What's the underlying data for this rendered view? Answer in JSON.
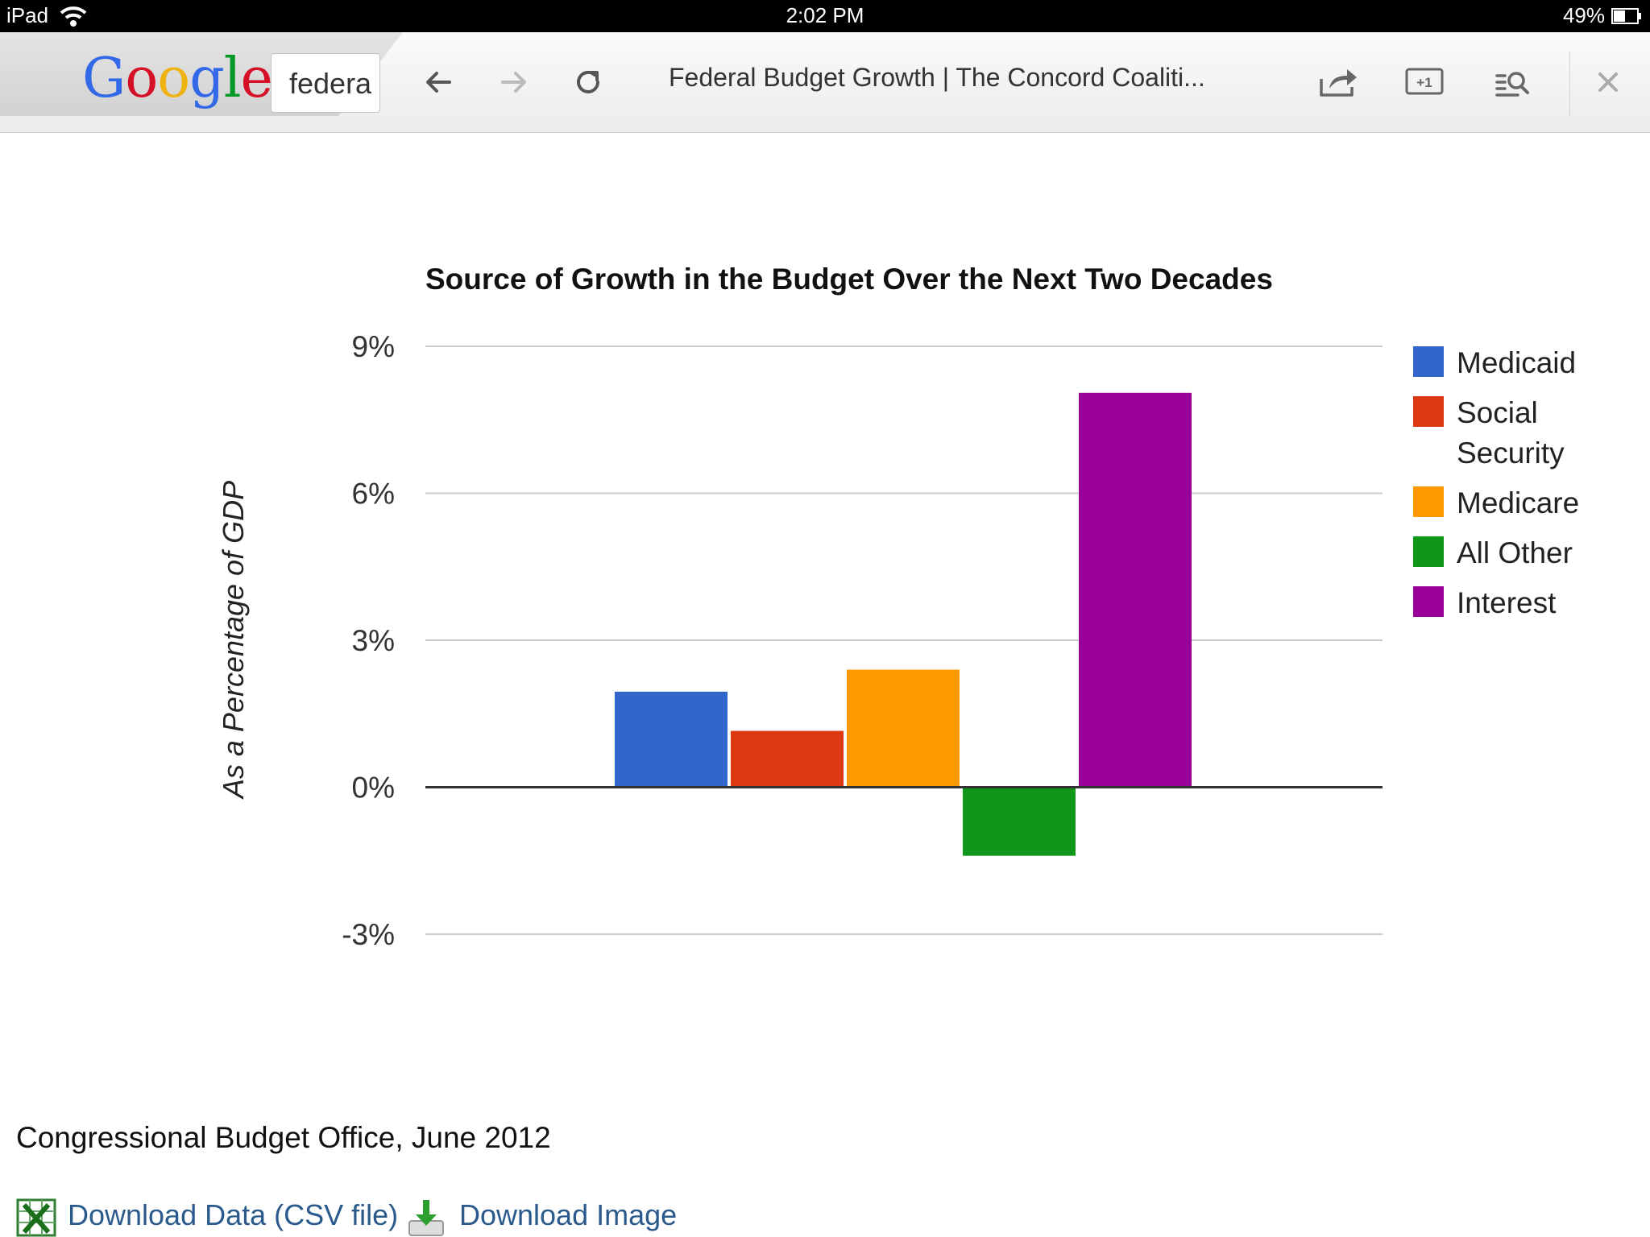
{
  "status": {
    "device": "iPad",
    "time": "2:02 PM",
    "battery": "49%"
  },
  "toolbar": {
    "logo": "Google",
    "search_value": "federa",
    "page_title": "Federal Budget Growth | The Concord Coaliti...",
    "icons": [
      "back-arrow-icon",
      "forward-arrow-icon",
      "reload-icon",
      "share-icon",
      "plus-one-icon",
      "reader-search-icon",
      "close-icon"
    ]
  },
  "chart_data": {
    "type": "bar",
    "title": "Source of Growth in the Budget Over the Next Two Decades",
    "xlabel": "",
    "ylabel": "As a Percentage of GDP",
    "ylim": [
      -3,
      9
    ],
    "yticks": [
      9,
      6,
      3,
      0,
      -3
    ],
    "ytick_labels": [
      "9%",
      "6%",
      "3%",
      "0%",
      "-3%"
    ],
    "grid": true,
    "legend_position": "right",
    "series": [
      {
        "name": "Medicaid",
        "color": "#3366cc",
        "value": 1.95
      },
      {
        "name": "Social Security",
        "color": "#dc3912",
        "value": 1.15
      },
      {
        "name": "Medicare",
        "color": "#ff9900",
        "value": 2.4
      },
      {
        "name": "All Other",
        "color": "#109618",
        "value": -1.4
      },
      {
        "name": "Interest",
        "color": "#990099",
        "value": 8.05
      }
    ]
  },
  "source": "Congressional Budget Office, June 2012",
  "downloads": {
    "csv_label": "Download Data (CSV file)",
    "image_label": "Download Image"
  }
}
